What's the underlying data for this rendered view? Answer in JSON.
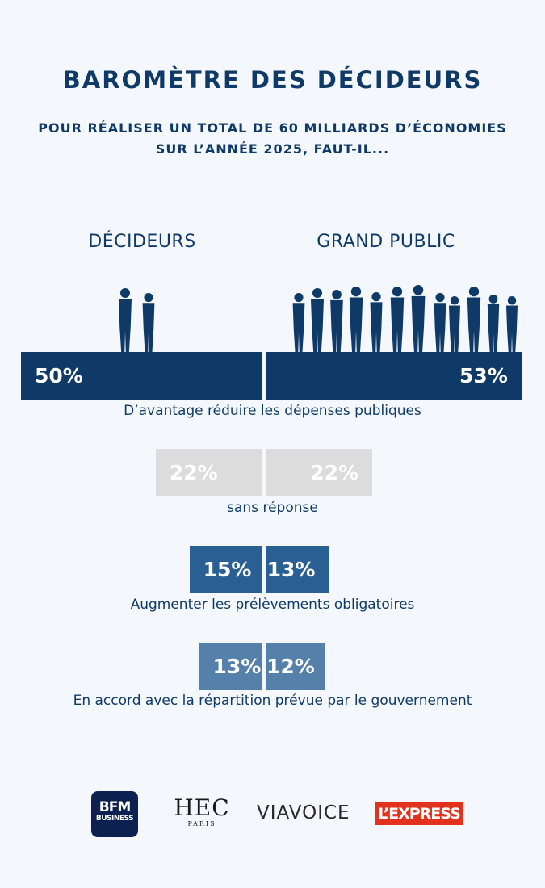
{
  "title": "BAROMÈTRE DES DÉCIDEURS",
  "subtitle": [
    "POUR RÉALISER UN TOTAL DE 60 MILLIARDS D’ÉCONOMIES",
    "SUR L’ANNÉE 2025, FAUT-IL..."
  ],
  "groups": {
    "left": "DÉCIDEURS",
    "right": "GRAND PUBLIC"
  },
  "chart_data": {
    "type": "bar",
    "title": "BAROMÈTRE DES DÉCIDEURS",
    "subtitle": "POUR RÉALISER UN TOTAL DE 60 MILLIARDS D’ÉCONOMIES SUR L’ANNÉE 2025, FAUT-IL...",
    "categories": [
      "D’avantage réduire les dépenses publiques",
      "sans réponse",
      "Augmenter les prélèvements obligatoires",
      "En accord avec la répartition prévue par le gouvernement"
    ],
    "series": [
      {
        "name": "DÉCIDEURS",
        "values": [
          50,
          22,
          15,
          13
        ],
        "labels": [
          "50%",
          "22%",
          "15%",
          "13%"
        ]
      },
      {
        "name": "GRAND PUBLIC",
        "values": [
          53,
          22,
          13,
          12
        ],
        "labels": [
          "53%",
          "22%",
          "13%",
          "12%"
        ]
      }
    ],
    "colors": [
      "#0f3a68",
      "#dcdcdc",
      "#2a5f94",
      "#5580aa"
    ],
    "legend": "top"
  },
  "logos": {
    "bfm": {
      "line1": "BFM",
      "line2": "BUSINESS"
    },
    "hec": {
      "line1": "HEC",
      "line2": "PARIS"
    },
    "viavoice": "VIAVOICE",
    "express": "L’EXPRESS"
  },
  "icons": {
    "people": "people-silhouette-icon"
  }
}
